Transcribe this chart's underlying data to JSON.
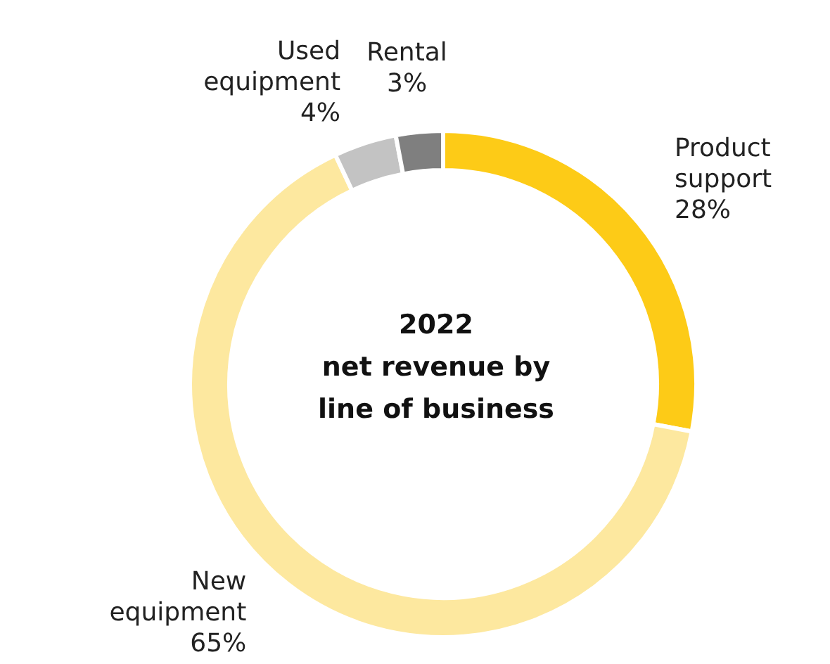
{
  "chart_data": {
    "type": "donut",
    "title": "2022\nnet revenue by\nline of business",
    "categories": [
      "Product support",
      "New equipment",
      "Used equipment",
      "Rental"
    ],
    "values": [
      28,
      65,
      4,
      3
    ],
    "value_labels": [
      "28%",
      "65%",
      "4%",
      "3%"
    ],
    "colors": [
      "#fdcb17",
      "#fde89f",
      "#c3c3c3",
      "#7f7f7f"
    ]
  }
}
